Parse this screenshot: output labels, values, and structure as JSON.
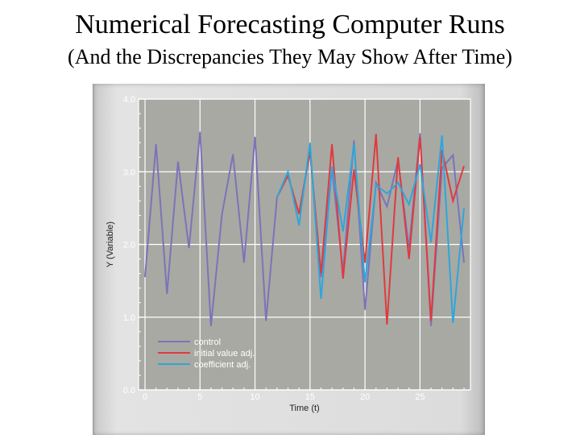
{
  "slide": {
    "title": "Numerical Forecasting Computer Runs",
    "subtitle": "(And the Discrepancies They May Show After Time)"
  },
  "chart_data": {
    "type": "line",
    "xlabel": "Time (t)",
    "ylabel": "Y (Variable)",
    "xlim": [
      0,
      29
    ],
    "ylim": [
      0,
      4
    ],
    "xticks": [
      0,
      5,
      10,
      15,
      20,
      25
    ],
    "yticks": [
      0.0,
      1.0,
      2.0,
      3.0,
      4.0
    ],
    "ytick_labels": [
      "0.0",
      "1.0",
      "2.0",
      "3.0",
      "4.0"
    ],
    "grid": true,
    "legend_position": "bottom-left",
    "colors": {
      "plot_bg": "#a8a9a3",
      "grid": "#ffffff",
      "frame": "#d8d8d8"
    },
    "series": [
      {
        "name": "control",
        "color": "#7b74b8",
        "x": [
          0,
          1,
          2,
          3,
          4,
          5,
          6,
          7,
          8,
          9,
          10,
          11,
          12,
          13,
          14,
          15,
          16,
          17,
          18,
          19,
          20,
          21,
          22,
          23,
          24,
          25,
          26,
          27,
          28,
          29
        ],
        "y": [
          1.55,
          3.38,
          1.32,
          3.14,
          1.95,
          3.55,
          0.88,
          2.42,
          3.24,
          1.75,
          3.48,
          0.95,
          2.65,
          2.95,
          2.42,
          3.28,
          1.55,
          3.05,
          1.63,
          3.43,
          1.1,
          2.85,
          2.52,
          3.16,
          1.95,
          3.53,
          0.88,
          3.05,
          3.23,
          1.75
        ]
      },
      {
        "name": "initial value adj.",
        "color": "#e03a3e",
        "x": [
          12,
          13,
          14,
          15,
          16,
          17,
          18,
          19,
          20,
          21,
          22,
          23,
          24,
          25,
          26,
          27,
          28,
          29
        ],
        "y": [
          2.65,
          2.95,
          2.42,
          3.28,
          1.6,
          3.38,
          1.53,
          3.03,
          1.75,
          3.52,
          0.9,
          3.2,
          1.8,
          3.48,
          0.95,
          3.3,
          2.6,
          3.08
        ]
      },
      {
        "name": "coefficient adj.",
        "color": "#2ea6db",
        "x": [
          12,
          13,
          14,
          15,
          16,
          17,
          18,
          19,
          20,
          21,
          22,
          23,
          24,
          25,
          26,
          27,
          28,
          29
        ],
        "y": [
          2.65,
          3.0,
          2.26,
          3.4,
          1.25,
          3.07,
          2.18,
          3.38,
          1.48,
          2.82,
          2.7,
          2.85,
          2.55,
          3.1,
          2.03,
          3.5,
          0.92,
          2.5
        ]
      }
    ]
  }
}
